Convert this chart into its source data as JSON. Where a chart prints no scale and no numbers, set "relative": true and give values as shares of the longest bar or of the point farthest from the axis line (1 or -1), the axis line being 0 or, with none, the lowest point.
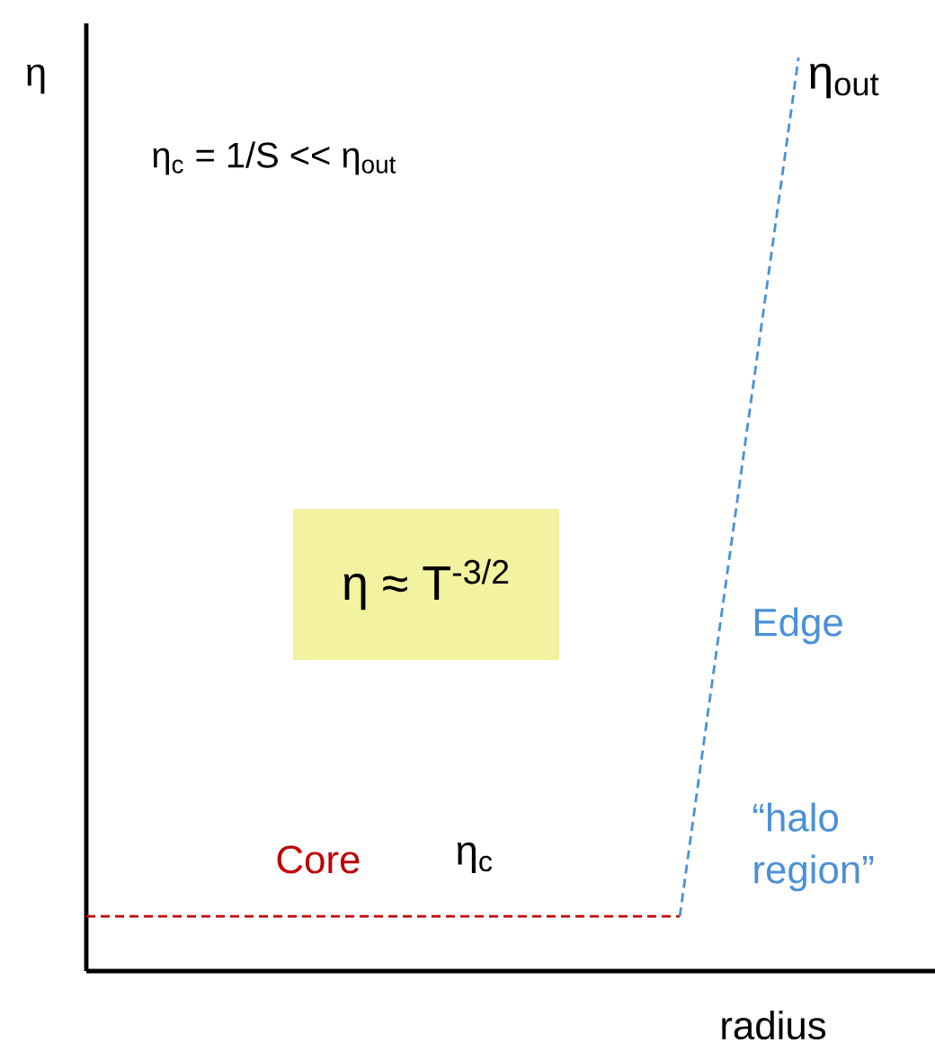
{
  "chart_data": {
    "type": "line",
    "relative": true,
    "xlabel": "radius",
    "ylabel": "η",
    "marker": "none",
    "categories": [
      null,
      null,
      null,
      null,
      null,
      null,
      null,
      null
    ],
    "series": [
      {
        "name": "Core",
        "color": "#c00000",
        "line_style": "dashed",
        "values": [
          0.06,
          0.06,
          0.06,
          0.06,
          0.06,
          0.06,
          null,
          null
        ]
      },
      {
        "name": "Edge",
        "color": "#4a90d9",
        "line_style": "dashed",
        "values": [
          null,
          null,
          null,
          null,
          null,
          0.06,
          1,
          null
        ]
      }
    ],
    "annotations": [
      "η$_{c}$ = 1/S << η$_{out}$",
      "η$_{out}$",
      "η ≈ T$^{-3/2}$",
      "η$_{c}$",
      "“halo region”"
    ]
  }
}
